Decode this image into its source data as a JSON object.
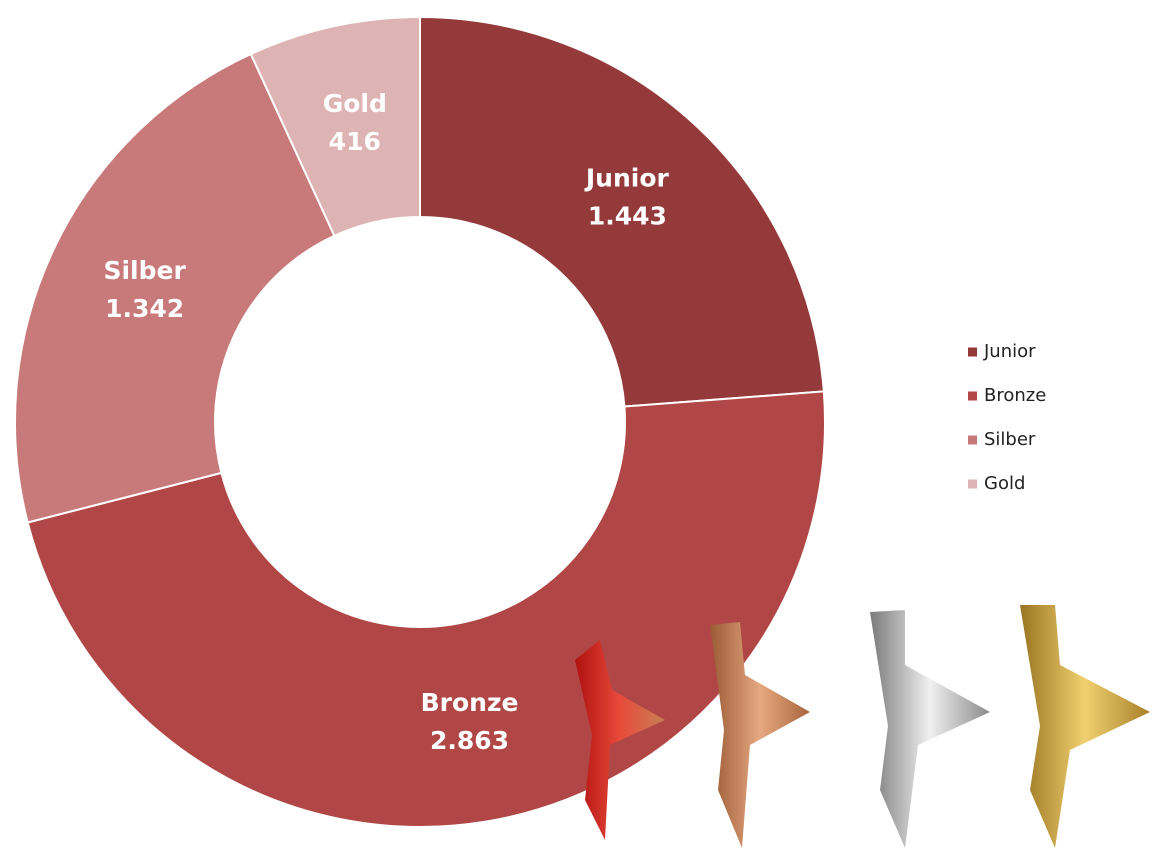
{
  "chart_data": {
    "type": "donut",
    "categories": [
      "Junior",
      "Bronze",
      "Silber",
      "Gold"
    ],
    "values": [
      1443,
      2863,
      1342,
      416
    ],
    "value_labels": [
      "1.443",
      "2.863",
      "1.342",
      "416"
    ],
    "colors": [
      "#953a3a",
      "#b04746",
      "#c87979",
      "#ddb3b3"
    ],
    "legend": "right"
  }
}
